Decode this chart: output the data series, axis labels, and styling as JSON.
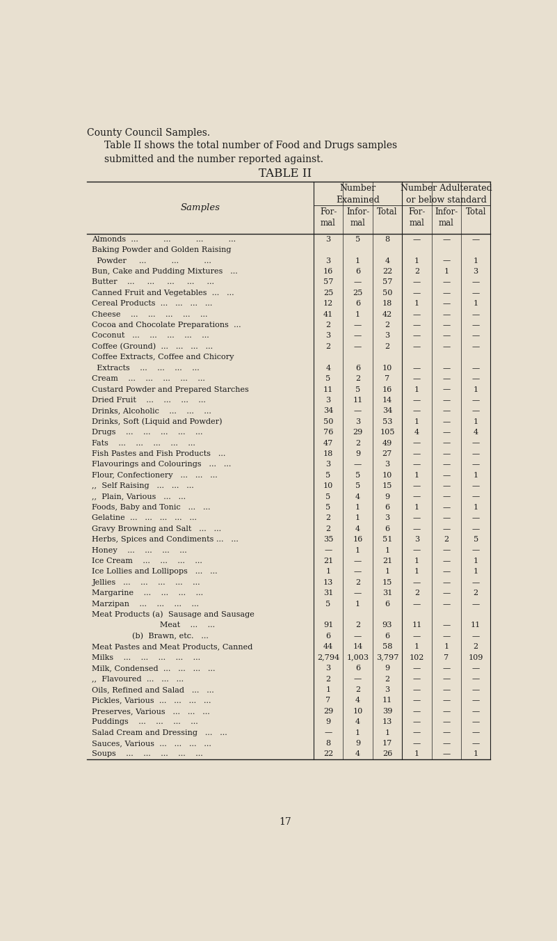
{
  "page_title": "County Council Samples.",
  "intro_text": "Table II shows the total number of Food and Drugs samples\nsubmitted and the number reported against.",
  "table_title": "TABLE II",
  "samples_label": "Samples",
  "rows": [
    {
      "name": "Almonds  ...          ...          ...          ...",
      "f1": "3",
      "i1": "5",
      "t1": "8",
      "f2": "—",
      "i2": "—",
      "t2": "—"
    },
    {
      "name": "Baking Powder and Golden Raising",
      "f1": "",
      "i1": "",
      "t1": "",
      "f2": "",
      "i2": "",
      "t2": ""
    },
    {
      "name": "  Powder     ...          ...          ...",
      "f1": "3",
      "i1": "1",
      "t1": "4",
      "f2": "1",
      "i2": "—",
      "t2": "1"
    },
    {
      "name": "Bun, Cake and Pudding Mixtures   ...",
      "f1": "16",
      "i1": "6",
      "t1": "22",
      "f2": "2",
      "i2": "1",
      "t2": "3"
    },
    {
      "name": "Butter    ...     ...     ...     ...     ...",
      "f1": "57",
      "i1": "—",
      "t1": "57",
      "f2": "—",
      "i2": "—",
      "t2": "—"
    },
    {
      "name": "Canned Fruit and Vegetables  ...   ...",
      "f1": "25",
      "i1": "25",
      "t1": "50",
      "f2": "—",
      "i2": "—",
      "t2": "—"
    },
    {
      "name": "Cereal Products  ...   ...   ...   ...",
      "f1": "12",
      "i1": "6",
      "t1": "18",
      "f2": "1",
      "i2": "—",
      "t2": "1"
    },
    {
      "name": "Cheese    ...    ...    ...    ...    ...",
      "f1": "41",
      "i1": "1",
      "t1": "42",
      "f2": "—",
      "i2": "—",
      "t2": "—"
    },
    {
      "name": "Cocoa and Chocolate Preparations  ...",
      "f1": "2",
      "i1": "—",
      "t1": "2",
      "f2": "—",
      "i2": "—",
      "t2": "—"
    },
    {
      "name": "Coconut   ...    ...    ...    ...    ...",
      "f1": "3",
      "i1": "—",
      "t1": "3",
      "f2": "—",
      "i2": "—",
      "t2": "—"
    },
    {
      "name": "Coffee (Ground)  ...   ...   ...   ...",
      "f1": "2",
      "i1": "—",
      "t1": "2",
      "f2": "—",
      "i2": "—",
      "t2": "—"
    },
    {
      "name": "Coffee Extracts, Coffee and Chicory",
      "f1": "",
      "i1": "",
      "t1": "",
      "f2": "",
      "i2": "",
      "t2": ""
    },
    {
      "name": "  Extracts    ...    ...    ...    ...",
      "f1": "4",
      "i1": "6",
      "t1": "10",
      "f2": "—",
      "i2": "—",
      "t2": "—"
    },
    {
      "name": "Cream    ...    ...    ...    ...    ...",
      "f1": "5",
      "i1": "2",
      "t1": "7",
      "f2": "—",
      "i2": "—",
      "t2": "—"
    },
    {
      "name": "Custard Powder and Prepared Starches",
      "f1": "11",
      "i1": "5",
      "t1": "16",
      "f2": "1",
      "i2": "—",
      "t2": "1"
    },
    {
      "name": "Dried Fruit    ...    ...    ...    ...",
      "f1": "3",
      "i1": "11",
      "t1": "14",
      "f2": "—",
      "i2": "—",
      "t2": "—"
    },
    {
      "name": "Drinks, Alcoholic    ...    ...    ...",
      "f1": "34",
      "i1": "—",
      "t1": "34",
      "f2": "—",
      "i2": "—",
      "t2": "—"
    },
    {
      "name": "Drinks, Soft (Liquid and Powder)",
      "f1": "50",
      "i1": "3",
      "t1": "53",
      "f2": "1",
      "i2": "—",
      "t2": "1"
    },
    {
      "name": "Drugs    ...    ...    ...    ...    ...",
      "f1": "76",
      "i1": "29",
      "t1": "105",
      "f2": "4",
      "i2": "—",
      "t2": "4"
    },
    {
      "name": "Fats    ...    ...    ...    ...    ...",
      "f1": "47",
      "i1": "2",
      "t1": "49",
      "f2": "—",
      "i2": "—",
      "t2": "—"
    },
    {
      "name": "Fish Pastes and Fish Products   ...",
      "f1": "18",
      "i1": "9",
      "t1": "27",
      "f2": "—",
      "i2": "—",
      "t2": "—"
    },
    {
      "name": "Flavourings and Colourings   ...   ...",
      "f1": "3",
      "i1": "—",
      "t1": "3",
      "f2": "—",
      "i2": "—",
      "t2": "—"
    },
    {
      "name": "Flour, Confectionery   ...   ...   ...",
      "f1": "5",
      "i1": "5",
      "t1": "10",
      "f2": "1",
      "i2": "—",
      "t2": "1"
    },
    {
      "name": ",,  Self Raising   ...   ...   ...",
      "f1": "10",
      "i1": "5",
      "t1": "15",
      "f2": "—",
      "i2": "—",
      "t2": "—"
    },
    {
      "name": ",,  Plain, Various   ...   ...",
      "f1": "5",
      "i1": "4",
      "t1": "9",
      "f2": "—",
      "i2": "—",
      "t2": "—"
    },
    {
      "name": "Foods, Baby and Tonic   ...   ...",
      "f1": "5",
      "i1": "1",
      "t1": "6",
      "f2": "1",
      "i2": "—",
      "t2": "1"
    },
    {
      "name": "Gelatine  ...   ...   ...   ...   ...",
      "f1": "2",
      "i1": "1",
      "t1": "3",
      "f2": "—",
      "i2": "—",
      "t2": "—"
    },
    {
      "name": "Gravy Browning and Salt   ...   ...",
      "f1": "2",
      "i1": "4",
      "t1": "6",
      "f2": "—",
      "i2": "—",
      "t2": "—"
    },
    {
      "name": "Herbs, Spices and Condiments ...   ...",
      "f1": "35",
      "i1": "16",
      "t1": "51",
      "f2": "3",
      "i2": "2",
      "t2": "5"
    },
    {
      "name": "Honey    ...    ...    ...    ...",
      "f1": "—",
      "i1": "1",
      "t1": "1",
      "f2": "—",
      "i2": "—",
      "t2": "—"
    },
    {
      "name": "Ice Cream    ...    ...    ...    ...",
      "f1": "21",
      "i1": "—",
      "t1": "21",
      "f2": "1",
      "i2": "—",
      "t2": "1"
    },
    {
      "name": "Ice Lollies and Lollipops   ...   ...",
      "f1": "1",
      "i1": "—",
      "t1": "1",
      "f2": "1",
      "i2": "—",
      "t2": "1"
    },
    {
      "name": "Jellies   ...    ...    ...    ...    ...",
      "f1": "13",
      "i1": "2",
      "t1": "15",
      "f2": "—",
      "i2": "—",
      "t2": "—"
    },
    {
      "name": "Margarine    ...    ...    ...    ...",
      "f1": "31",
      "i1": "—",
      "t1": "31",
      "f2": "2",
      "i2": "—",
      "t2": "2"
    },
    {
      "name": "Marzipan    ...    ...    ...    ...",
      "f1": "5",
      "i1": "1",
      "t1": "6",
      "f2": "—",
      "i2": "—",
      "t2": "—"
    },
    {
      "name": "Meat Products (a)  Sausage and Sausage",
      "f1": "",
      "i1": "",
      "t1": "",
      "f2": "",
      "i2": "",
      "t2": ""
    },
    {
      "name": "                           Meat    ...    ...",
      "f1": "91",
      "i1": "2",
      "t1": "93",
      "f2": "11",
      "i2": "—",
      "t2": "11"
    },
    {
      "name": "                (b)  Brawn, etc.   ...",
      "f1": "6",
      "i1": "—",
      "t1": "6",
      "f2": "—",
      "i2": "—",
      "t2": "—"
    },
    {
      "name": "Meat Pastes and Meat Products, Canned",
      "f1": "44",
      "i1": "14",
      "t1": "58",
      "f2": "1",
      "i2": "1",
      "t2": "2"
    },
    {
      "name": "Milks    ...    ...    ...    ...    ...",
      "f1": "2,794",
      "i1": "1,003",
      "t1": "3,797",
      "f2": "102",
      "i2": "7",
      "t2": "109"
    },
    {
      "name": "Milk, Condensed  ...   ...   ...   ...",
      "f1": "3",
      "i1": "6",
      "t1": "9",
      "f2": "—",
      "i2": "—",
      "t2": "—"
    },
    {
      "name": ",,  Flavoured  ...   ...   ...",
      "f1": "2",
      "i1": "—",
      "t1": "2",
      "f2": "—",
      "i2": "—",
      "t2": "—"
    },
    {
      "name": "Oils, Refined and Salad   ...   ...",
      "f1": "1",
      "i1": "2",
      "t1": "3",
      "f2": "—",
      "i2": "—",
      "t2": "—"
    },
    {
      "name": "Pickles, Various  ...   ...   ...   ...",
      "f1": "7",
      "i1": "4",
      "t1": "11",
      "f2": "—",
      "i2": "—",
      "t2": "—"
    },
    {
      "name": "Preserves, Various   ...   ...   ...",
      "f1": "29",
      "i1": "10",
      "t1": "39",
      "f2": "—",
      "i2": "—",
      "t2": "—"
    },
    {
      "name": "Puddings    ...    ...    ...    ...",
      "f1": "9",
      "i1": "4",
      "t1": "13",
      "f2": "—",
      "i2": "—",
      "t2": "—"
    },
    {
      "name": "Salad Cream and Dressing   ...   ...",
      "f1": "—",
      "i1": "1",
      "t1": "1",
      "f2": "—",
      "i2": "—",
      "t2": "—"
    },
    {
      "name": "Sauces, Various  ...   ...   ...   ...",
      "f1": "8",
      "i1": "9",
      "t1": "17",
      "f2": "—",
      "i2": "—",
      "t2": "—"
    },
    {
      "name": "Soups    ...    ...    ...    ...    ...",
      "f1": "22",
      "i1": "4",
      "t1": "26",
      "f2": "1",
      "i2": "—",
      "t2": "1"
    }
  ],
  "page_number": "17",
  "bg_color": "#e8e0d0",
  "text_color": "#1a1a1a"
}
